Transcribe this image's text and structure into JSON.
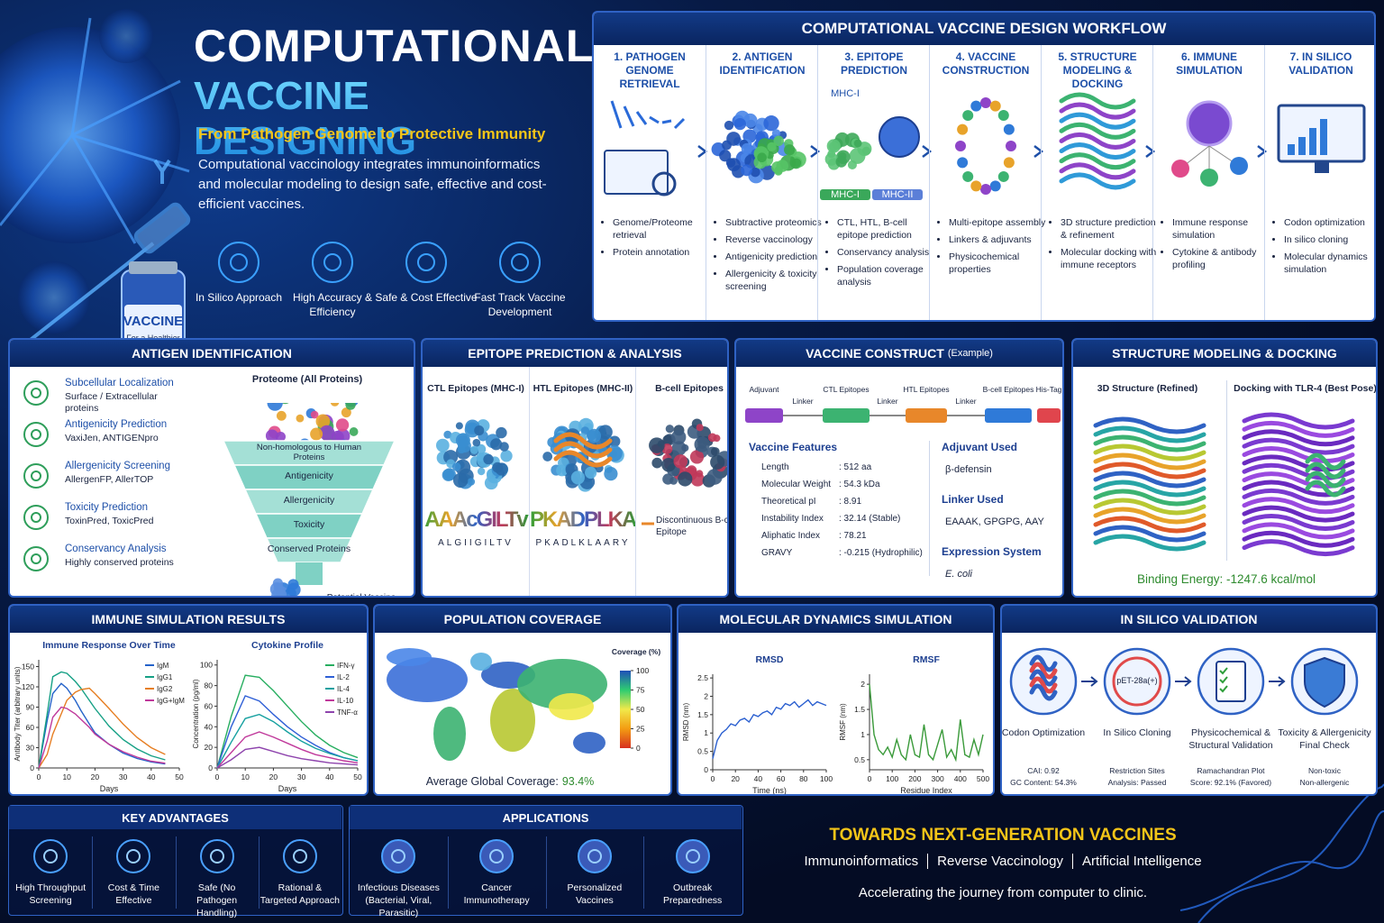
{
  "header": {
    "title1": "COMPUTATIONAL",
    "title2": "VACCINE DESIGNING",
    "subtitle": "From Pathogen Genome to Protective Immunity",
    "description": "Computational vaccinology integrates immunoinformatics and molecular modeling to design safe, effective and cost-efficient vaccines.",
    "features": [
      "In Silico Approach",
      "High Accuracy & Efficiency",
      "Safe & Cost Effective",
      "Fast Track Vaccine Development"
    ],
    "vial_label": "VACCINE",
    "vial_sublabel": "For a Healthier Tomorrow"
  },
  "workflow": {
    "title": "COMPUTATIONAL VACCINE DESIGN WORKFLOW",
    "steps": [
      {
        "title": "1. PATHOGEN GENOME RETRIEVAL",
        "bullets": [
          "Genome/Proteome retrieval",
          "Protein annotation"
        ]
      },
      {
        "title": "2. ANTIGEN IDENTIFICATION",
        "bullets": [
          "Subtractive proteomics",
          "Reverse vaccinology",
          "Antigenicity prediction",
          "Allergenicity & toxicity screening"
        ]
      },
      {
        "title": "3. EPITOPE PREDICTION",
        "labels": [
          "MHC-I",
          "MHC-I",
          "MHC-II"
        ],
        "bullets": [
          "CTL, HTL, B-cell epitope prediction",
          "Conservancy analysis",
          "Population coverage analysis"
        ]
      },
      {
        "title": "4. VACCINE CONSTRUCTION",
        "bullets": [
          "Multi-epitope assembly",
          "Linkers & adjuvants",
          "Physicochemical properties"
        ]
      },
      {
        "title": "5. STRUCTURE MODELING & DOCKING",
        "bullets": [
          "3D structure prediction & refinement",
          "Molecular docking with immune receptors"
        ]
      },
      {
        "title": "6. IMMUNE SIMULATION",
        "bullets": [
          "Immune response simulation",
          "Cytokine & antibody profiling"
        ]
      },
      {
        "title": "7. IN SILICO VALIDATION",
        "bullets": [
          "Codon optimization",
          "In silico cloning",
          "Molecular dynamics simulation"
        ]
      }
    ]
  },
  "antigen": {
    "title": "ANTIGEN IDENTIFICATION",
    "items": [
      {
        "name": "Subcellular Localization",
        "detail": "Surface / Extracellular proteins"
      },
      {
        "name": "Antigenicity Prediction",
        "detail": "VaxiJen, ANTIGENpro"
      },
      {
        "name": "Allergenicity Screening",
        "detail": "AllergenFP, AllerTOP"
      },
      {
        "name": "Toxicity Prediction",
        "detail": "ToxinPred, ToxicPred"
      },
      {
        "name": "Conservancy Analysis",
        "detail": "Highly conserved proteins"
      }
    ],
    "funnel_top": "Proteome (All Proteins)",
    "stages": [
      "Non-homologous to Human Proteins",
      "Antigenicity",
      "Allergenicity",
      "Toxicity",
      "Conserved Proteins"
    ],
    "result": "Potential Vaccine Candidates"
  },
  "epitope": {
    "title": "EPITOPE PREDICTION & ANALYSIS",
    "columns": [
      {
        "title": "CTL Epitopes (MHC-I)",
        "logo": "AAAcGILTv",
        "sequence": "ALGIIGILTV"
      },
      {
        "title": "HTL Epitopes (MHC-II)",
        "logo": "PKADPLKAARY",
        "sequence": "PKADLKLAARY"
      },
      {
        "title": "B-cell Epitopes",
        "legend": "Discontinuous B-cell Epitope"
      }
    ]
  },
  "construct": {
    "title": "VACCINE CONSTRUCT",
    "title_note": "(Example)",
    "segments": [
      {
        "label": "Adjuvant",
        "color": "#8e44c8"
      },
      {
        "label": "Linker"
      },
      {
        "label": "CTL Epitopes",
        "color": "#3cb371"
      },
      {
        "label": "Linker"
      },
      {
        "label": "HTL Epitopes",
        "color": "#e8872a"
      },
      {
        "label": "Linker"
      },
      {
        "label": "B-cell Epitopes",
        "color": "#2f7ad8"
      },
      {
        "label": "His-Tag",
        "color": "#e0454d"
      }
    ],
    "features_title": "Vaccine Features",
    "features": [
      {
        "name": "Length",
        "value": ": 512 aa"
      },
      {
        "name": "Molecular Weight",
        "value": ": 54.3 kDa"
      },
      {
        "name": "Theoretical pI",
        "value": ": 8.91"
      },
      {
        "name": "Instability Index",
        "value": ": 32.14 (Stable)"
      },
      {
        "name": "Aliphatic Index",
        "value": ": 78.21"
      },
      {
        "name": "GRAVY",
        "value": ": -0.215 (Hydrophilic)"
      }
    ],
    "side": [
      {
        "title": "Adjuvant Used",
        "text": "β-defensin"
      },
      {
        "title": "Linker Used",
        "text": "EAAAK, GPGPG, AAY"
      },
      {
        "title": "Expression System",
        "text": "E. coli"
      }
    ]
  },
  "structure": {
    "title": "STRUCTURE MODELING & DOCKING",
    "left": "3D Structure (Refined)",
    "right": "Docking with TLR-4 (Best Pose)",
    "energy": "Binding Energy: -1247.6 kcal/mol"
  },
  "immune": {
    "title": "IMMUNE SIMULATION RESULTS",
    "charts": [
      {
        "type": "line",
        "title": "Immune Response Over Time",
        "xlabel": "Days",
        "ylabel": "Antibody Titer (arbitrary units)",
        "x": [
          0,
          3,
          5,
          8,
          10,
          13,
          15,
          18,
          20,
          25,
          30,
          35,
          40,
          45
        ],
        "xlim": [
          0,
          50
        ],
        "xticks": [
          0,
          10,
          20,
          30,
          40,
          50
        ],
        "ylim": [
          0,
          160
        ],
        "yticks": [
          0,
          30,
          60,
          90,
          120,
          150
        ],
        "series": [
          {
            "name": "IgM",
            "color": "#2563c9",
            "values": [
              0,
              70,
              110,
              125,
              118,
              100,
              85,
              65,
              52,
              35,
              22,
              14,
              9,
              6
            ]
          },
          {
            "name": "IgG1",
            "color": "#16a085",
            "values": [
              0,
              80,
              135,
              142,
              140,
              128,
              118,
              100,
              88,
              62,
              42,
              28,
              18,
              12
            ]
          },
          {
            "name": "IgG2",
            "color": "#e67e22",
            "values": [
              0,
              20,
              50,
              80,
              100,
              112,
              116,
              118,
              110,
              88,
              65,
              45,
              30,
              20
            ]
          },
          {
            "name": "IgG+IgM",
            "color": "#c0399b",
            "values": [
              0,
              40,
              75,
              90,
              88,
              80,
              72,
              60,
              50,
              35,
              24,
              16,
              10,
              7
            ]
          }
        ]
      },
      {
        "type": "line",
        "title": "Cytokine Profile",
        "xlabel": "Days",
        "ylabel": "Concentration (pg/ml)",
        "x": [
          0,
          5,
          10,
          15,
          20,
          25,
          30,
          35,
          40,
          45,
          50
        ],
        "xlim": [
          0,
          50
        ],
        "xticks": [
          0,
          10,
          20,
          30,
          40,
          50
        ],
        "ylim": [
          0,
          105
        ],
        "yticks": [
          0,
          20,
          40,
          60,
          80,
          100
        ],
        "series": [
          {
            "name": "IFN-γ",
            "color": "#27ae60",
            "values": [
              0,
              50,
              90,
              88,
              75,
              60,
              45,
              32,
              22,
              15,
              10
            ]
          },
          {
            "name": "IL-2",
            "color": "#2e5fd6",
            "values": [
              0,
              40,
              70,
              65,
              52,
              40,
              30,
              22,
              15,
              10,
              7
            ]
          },
          {
            "name": "IL-4",
            "color": "#16a0a0",
            "values": [
              0,
              25,
              48,
              52,
              45,
              35,
              26,
              19,
              14,
              10,
              7
            ]
          },
          {
            "name": "IL-10",
            "color": "#c0399b",
            "values": [
              0,
              15,
              30,
              35,
              30,
              24,
              18,
              13,
              10,
              7,
              5
            ]
          },
          {
            "name": "TNF-α",
            "color": "#8e44ad",
            "values": [
              0,
              8,
              18,
              20,
              16,
              12,
              9,
              7,
              5,
              4,
              3
            ]
          }
        ]
      }
    ]
  },
  "population": {
    "title": "POPULATION COVERAGE",
    "legend_title": "Coverage (%)",
    "lim": [
      0,
      100
    ],
    "ticks": [
      100,
      75,
      50,
      25,
      0
    ],
    "coverage_label": "Average Global Coverage:",
    "coverage_value": "93.4%"
  },
  "md": {
    "title": "MOLECULAR DYNAMICS SIMULATION",
    "charts": [
      {
        "type": "line",
        "title": "RMSD",
        "xlabel": "Time (ns)",
        "ylabel": "RMSD (nm)",
        "x": [
          0,
          4,
          8,
          12,
          16,
          20,
          24,
          28,
          32,
          36,
          40,
          44,
          48,
          52,
          56,
          60,
          64,
          68,
          72,
          76,
          80,
          84,
          88,
          92,
          96,
          100
        ],
        "xlim": [
          0,
          100
        ],
        "xticks": [
          0,
          20,
          40,
          60,
          80,
          100
        ],
        "ylim": [
          0,
          2.6
        ],
        "yticks": [
          0,
          0.5,
          1,
          1.5,
          2,
          2.5
        ],
        "series": [
          {
            "color": "#2a5fd0",
            "values": [
              0.3,
              0.8,
              1.0,
              1.1,
              1.25,
              1.2,
              1.35,
              1.4,
              1.3,
              1.5,
              1.45,
              1.55,
              1.6,
              1.5,
              1.7,
              1.65,
              1.8,
              1.75,
              1.85,
              1.7,
              1.8,
              1.9,
              1.75,
              1.85,
              1.8,
              1.75
            ]
          }
        ]
      },
      {
        "type": "line",
        "title": "RMSF",
        "xlabel": "Residue Index",
        "ylabel": "RMSF (nm)",
        "x": [
          0,
          20,
          40,
          60,
          80,
          100,
          120,
          140,
          160,
          180,
          200,
          220,
          240,
          260,
          280,
          300,
          320,
          340,
          360,
          380,
          400,
          420,
          440,
          460,
          480,
          500
        ],
        "xlim": [
          0,
          500
        ],
        "xticks": [
          0,
          100,
          200,
          300,
          400,
          500
        ],
        "ylim": [
          0.3,
          2.2
        ],
        "yticks": [
          0.5,
          1,
          1.5,
          2
        ],
        "series": [
          {
            "color": "#3a9a3a",
            "values": [
              2.0,
              1.0,
              0.7,
              0.6,
              0.75,
              0.55,
              0.9,
              0.6,
              0.5,
              1.0,
              0.6,
              0.55,
              1.2,
              0.6,
              0.5,
              0.8,
              1.1,
              0.55,
              0.7,
              0.5,
              1.3,
              0.6,
              0.55,
              0.9,
              0.6,
              1.0
            ]
          }
        ]
      }
    ]
  },
  "validation": {
    "title": "IN SILICO VALIDATION",
    "steps": [
      {
        "title": "Codon Optimization",
        "details": [
          "CAI: 0.92",
          "GC Content: 54.3%"
        ]
      },
      {
        "title": "In Silico Cloning",
        "icon_label": "pET-28a(+)",
        "details": [
          "Restriction Sites",
          "Analysis: Passed"
        ]
      },
      {
        "title": "Physicochemical & Structural Validation",
        "details": [
          "Ramachandran Plot",
          "Score: 92.1% (Favored)"
        ]
      },
      {
        "title": "Toxicity & Allergenicity Final Check",
        "details": [
          "Non-toxic",
          "Non-allergenic"
        ]
      }
    ]
  },
  "advantages": {
    "title": "KEY ADVANTAGES",
    "items": [
      "High Throughput Screening",
      "Cost & Time Effective",
      "Safe (No Pathogen Handling)",
      "Rational & Targeted Approach"
    ]
  },
  "applications": {
    "title": "APPLICATIONS",
    "items": [
      "Infectious Diseases (Bacterial, Viral, Parasitic)",
      "Cancer Immunotherapy",
      "Personalized Vaccines",
      "Outbreak Preparedness"
    ]
  },
  "footer": {
    "title": "TOWARDS NEXT-GENERATION VACCINES",
    "tags": [
      "Immunoinformatics",
      "Reverse Vaccinology",
      "Artificial Intelligence"
    ],
    "tagline": "Accelerating the journey from computer to clinic."
  }
}
